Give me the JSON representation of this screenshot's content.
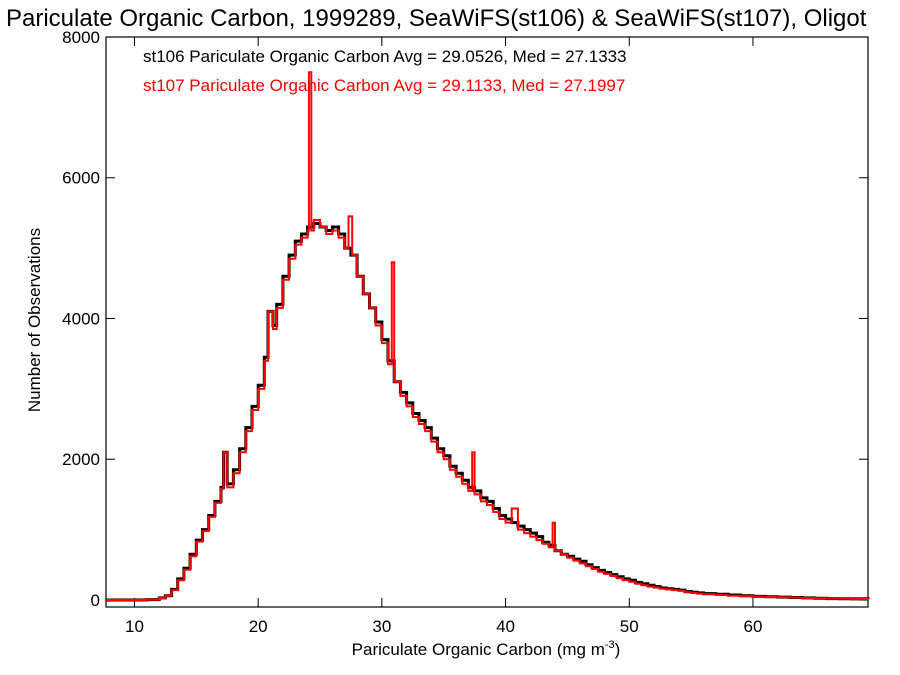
{
  "chart_data": {
    "type": "line",
    "title": "Pariculate Organic Carbon, 1999289, SeaWiFS(st106) & SeaWiFS(st107), Oligot",
    "xlabel": "Pariculate Organic Carbon (mg m",
    "xlabel_sup": "-3",
    "xlabel_end": ")",
    "ylabel": "Number of Observations",
    "xlim": [
      7.7,
      69.3
    ],
    "ylim": [
      -100,
      8000
    ],
    "x_ticks": [
      10,
      20,
      30,
      40,
      50,
      60
    ],
    "y_ticks": [
      0,
      2000,
      4000,
      6000,
      8000
    ],
    "grid": false,
    "legend_position": "top-left",
    "series": [
      {
        "name": "st106",
        "label": "st106 Pariculate Organic Carbon Avg = 29.0526, Med = 27.1333",
        "color": "#000000",
        "points": [
          [
            7.7,
            0
          ],
          [
            10,
            0
          ],
          [
            11,
            5
          ],
          [
            12,
            30
          ],
          [
            12.5,
            60
          ],
          [
            13,
            150
          ],
          [
            13.5,
            300
          ],
          [
            14,
            450
          ],
          [
            14.5,
            650
          ],
          [
            15,
            850
          ],
          [
            15.5,
            1000
          ],
          [
            16,
            1200
          ],
          [
            16.5,
            1400
          ],
          [
            17,
            1600
          ],
          [
            17.2,
            2100
          ],
          [
            17.5,
            1650
          ],
          [
            18,
            1850
          ],
          [
            18.5,
            2150
          ],
          [
            19,
            2450
          ],
          [
            19.5,
            2750
          ],
          [
            20,
            3050
          ],
          [
            20.5,
            3450
          ],
          [
            20.8,
            4100
          ],
          [
            21.2,
            3900
          ],
          [
            21.5,
            4200
          ],
          [
            22,
            4600
          ],
          [
            22.5,
            4900
          ],
          [
            23,
            5100
          ],
          [
            23.5,
            5200
          ],
          [
            24,
            5300
          ],
          [
            24.5,
            5350
          ],
          [
            25,
            5300
          ],
          [
            25.5,
            5250
          ],
          [
            26,
            5300
          ],
          [
            26.5,
            5200
          ],
          [
            27,
            5000
          ],
          [
            27.5,
            4900
          ],
          [
            28,
            4600
          ],
          [
            28.5,
            4350
          ],
          [
            29,
            4150
          ],
          [
            29.5,
            3950
          ],
          [
            30,
            3700
          ],
          [
            30.5,
            3400
          ],
          [
            31,
            3100
          ],
          [
            31.5,
            2950
          ],
          [
            32,
            2800
          ],
          [
            32.5,
            2650
          ],
          [
            33,
            2550
          ],
          [
            33.5,
            2450
          ],
          [
            34,
            2300
          ],
          [
            34.5,
            2150
          ],
          [
            35,
            2050
          ],
          [
            35.5,
            1900
          ],
          [
            36,
            1800
          ],
          [
            36.5,
            1700
          ],
          [
            37,
            1600
          ],
          [
            37.5,
            1550
          ],
          [
            38,
            1450
          ],
          [
            38.5,
            1400
          ],
          [
            39,
            1300
          ],
          [
            39.5,
            1200
          ],
          [
            40,
            1150
          ],
          [
            40.5,
            1100
          ],
          [
            41,
            1050
          ],
          [
            41.5,
            1000
          ],
          [
            42,
            950
          ],
          [
            42.5,
            900
          ],
          [
            43,
            820
          ],
          [
            43.5,
            780
          ],
          [
            44,
            700
          ],
          [
            44.5,
            650
          ],
          [
            45,
            620
          ],
          [
            45.5,
            580
          ],
          [
            46,
            550
          ],
          [
            46.5,
            500
          ],
          [
            47,
            460
          ],
          [
            47.5,
            420
          ],
          [
            48,
            390
          ],
          [
            48.5,
            360
          ],
          [
            49,
            330
          ],
          [
            49.5,
            300
          ],
          [
            50,
            280
          ],
          [
            50.5,
            250
          ],
          [
            51,
            230
          ],
          [
            51.5,
            210
          ],
          [
            52,
            190
          ],
          [
            52.5,
            170
          ],
          [
            53,
            160
          ],
          [
            53.5,
            150
          ],
          [
            54,
            140
          ],
          [
            54.5,
            120
          ],
          [
            55,
            110
          ],
          [
            55.5,
            100
          ],
          [
            56,
            90
          ],
          [
            57,
            80
          ],
          [
            58,
            70
          ],
          [
            59,
            60
          ],
          [
            60,
            50
          ],
          [
            61,
            45
          ],
          [
            62,
            40
          ],
          [
            63,
            35
          ],
          [
            64,
            30
          ],
          [
            65,
            25
          ],
          [
            66,
            20
          ],
          [
            67,
            18
          ],
          [
            68,
            15
          ],
          [
            69.3,
            12
          ]
        ]
      },
      {
        "name": "st107",
        "label": "st107 Pariculate Organic Carbon Avg = 29.1133, Med = 27.1997",
        "color": "#ff0000",
        "points": [
          [
            7.7,
            0
          ],
          [
            10,
            0
          ],
          [
            11,
            5
          ],
          [
            12,
            30
          ],
          [
            12.5,
            60
          ],
          [
            13,
            140
          ],
          [
            13.5,
            280
          ],
          [
            14,
            430
          ],
          [
            14.5,
            620
          ],
          [
            15,
            830
          ],
          [
            15.5,
            980
          ],
          [
            16,
            1180
          ],
          [
            16.5,
            1380
          ],
          [
            17,
            1580
          ],
          [
            17.2,
            2100
          ],
          [
            17.5,
            1600
          ],
          [
            18,
            1800
          ],
          [
            18.5,
            2100
          ],
          [
            19,
            2400
          ],
          [
            19.5,
            2700
          ],
          [
            20,
            3000
          ],
          [
            20.5,
            3400
          ],
          [
            20.8,
            4100
          ],
          [
            21.2,
            3850
          ],
          [
            21.5,
            4150
          ],
          [
            22,
            4550
          ],
          [
            22.5,
            4850
          ],
          [
            23,
            5050
          ],
          [
            23.5,
            5150
          ],
          [
            24,
            5250
          ],
          [
            24.1,
            7500
          ],
          [
            24.3,
            5250
          ],
          [
            24.5,
            5400
          ],
          [
            25,
            5300
          ],
          [
            25.5,
            5200
          ],
          [
            26,
            5250
          ],
          [
            26.5,
            5150
          ],
          [
            27,
            5000
          ],
          [
            27.3,
            5450
          ],
          [
            27.6,
            4900
          ],
          [
            28,
            4600
          ],
          [
            28.5,
            4350
          ],
          [
            29,
            4150
          ],
          [
            29.5,
            3900
          ],
          [
            30,
            3650
          ],
          [
            30.5,
            3350
          ],
          [
            30.8,
            4800
          ],
          [
            31,
            3100
          ],
          [
            31.5,
            2900
          ],
          [
            32,
            2750
          ],
          [
            32.5,
            2600
          ],
          [
            33,
            2500
          ],
          [
            33.5,
            2400
          ],
          [
            34,
            2250
          ],
          [
            34.5,
            2100
          ],
          [
            35,
            2000
          ],
          [
            35.5,
            1850
          ],
          [
            36,
            1750
          ],
          [
            36.5,
            1650
          ],
          [
            37,
            1550
          ],
          [
            37.3,
            2100
          ],
          [
            37.5,
            1500
          ],
          [
            38,
            1400
          ],
          [
            38.5,
            1350
          ],
          [
            39,
            1250
          ],
          [
            39.5,
            1150
          ],
          [
            40,
            1100
          ],
          [
            40.5,
            1300
          ],
          [
            41,
            1000
          ],
          [
            41.5,
            950
          ],
          [
            42,
            900
          ],
          [
            42.5,
            850
          ],
          [
            43,
            800
          ],
          [
            43.5,
            750
          ],
          [
            43.8,
            1100
          ],
          [
            44,
            700
          ],
          [
            44.5,
            650
          ],
          [
            45,
            600
          ],
          [
            45.5,
            560
          ],
          [
            46,
            520
          ],
          [
            46.5,
            480
          ],
          [
            47,
            440
          ],
          [
            47.5,
            400
          ],
          [
            48,
            370
          ],
          [
            48.5,
            340
          ],
          [
            49,
            310
          ],
          [
            49.5,
            280
          ],
          [
            50,
            260
          ],
          [
            50.5,
            230
          ],
          [
            51,
            210
          ],
          [
            51.5,
            190
          ],
          [
            52,
            175
          ],
          [
            52.5,
            160
          ],
          [
            53,
            150
          ],
          [
            53.5,
            140
          ],
          [
            54,
            130
          ],
          [
            54.5,
            110
          ],
          [
            55,
            100
          ],
          [
            55.5,
            90
          ],
          [
            56,
            80
          ],
          [
            57,
            70
          ],
          [
            58,
            60
          ],
          [
            59,
            55
          ],
          [
            60,
            48
          ],
          [
            61,
            42
          ],
          [
            62,
            38
          ],
          [
            63,
            33
          ],
          [
            64,
            28
          ],
          [
            65,
            24
          ],
          [
            66,
            20
          ],
          [
            67,
            17
          ],
          [
            68,
            14
          ],
          [
            69.3,
            10
          ]
        ]
      }
    ]
  }
}
